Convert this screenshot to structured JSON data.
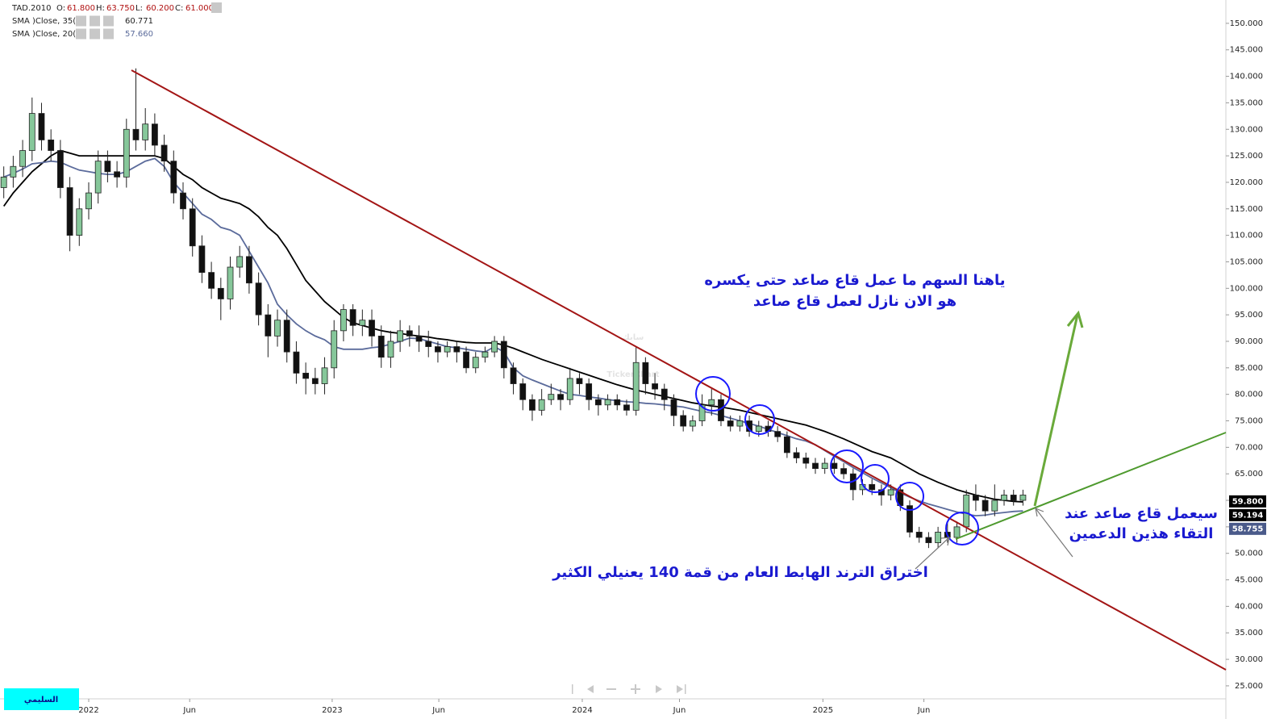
{
  "chart_data": {
    "type": "candlestick",
    "ohlc": [
      {
        "key": "O:",
        "value": "61.800"
      },
      {
        "key": "H:",
        "value": "63.750"
      },
      {
        "key": "L:",
        "value": "60.200"
      },
      {
        "key": "C:",
        "value": "61.000"
      }
    ],
    "xlim": [
      -0.4,
      129.5
    ],
    "xticks": [
      {
        "value": 9,
        "label": "2022"
      },
      {
        "value": 19.7,
        "label": "Jun"
      },
      {
        "value": 34.8,
        "label": "2023"
      },
      {
        "value": 46.1,
        "label": "Jun"
      },
      {
        "value": 61.3,
        "label": "2024"
      },
      {
        "value": 71.6,
        "label": "Jun"
      },
      {
        "value": 86.8,
        "label": "2025"
      },
      {
        "value": 97.5,
        "label": "Jun"
      }
    ],
    "ylim": [
      22.55,
      154.4
    ],
    "yticks": [
      {
        "value": 150,
        "label": "150.000"
      },
      {
        "value": 145,
        "label": "145.000"
      },
      {
        "value": 140,
        "label": "140.000"
      },
      {
        "value": 135,
        "label": "135.000"
      },
      {
        "value": 130,
        "label": "130.000"
      },
      {
        "value": 125,
        "label": "125.000"
      },
      {
        "value": 120,
        "label": "120.000"
      },
      {
        "value": 115,
        "label": "115.000"
      },
      {
        "value": 110,
        "label": "110.000"
      },
      {
        "value": 105,
        "label": "105.000"
      },
      {
        "value": 100,
        "label": "100.000"
      },
      {
        "value": 95,
        "label": "95.000"
      },
      {
        "value": 90,
        "label": "90.000"
      },
      {
        "value": 85,
        "label": "85.000"
      },
      {
        "value": 80,
        "label": "80.000"
      },
      {
        "value": 75,
        "label": "75.000"
      },
      {
        "value": 70,
        "label": "70.000"
      },
      {
        "value": 65,
        "label": "65.000"
      },
      {
        "value": 60,
        "label": "60.000"
      },
      {
        "value": 55,
        "label": "55.000"
      },
      {
        "value": 50,
        "label": "50.000"
      },
      {
        "value": 45,
        "label": "45.000"
      },
      {
        "value": 40,
        "label": "40.000"
      },
      {
        "value": 35,
        "label": "35.000"
      },
      {
        "value": 30,
        "label": "30.000"
      },
      {
        "value": 25,
        "label": "25.000"
      }
    ],
    "series": [
      {
        "name": "TAD.2010",
        "up_color": "#86c79a",
        "down_color": "#111111",
        "open": [
          119,
          121,
          123,
          126,
          133,
          128,
          126,
          119,
          110,
          115,
          118,
          124,
          122,
          121,
          130,
          128,
          131,
          127,
          124,
          118,
          115,
          108,
          103,
          100,
          98,
          104,
          106,
          101,
          95,
          91,
          94,
          88,
          84,
          83,
          82,
          85,
          92,
          96,
          93,
          94,
          91,
          87,
          90,
          92,
          91,
          90,
          89,
          88,
          89,
          88,
          85,
          87,
          88,
          90,
          85,
          82,
          79,
          77,
          79,
          80,
          79,
          83,
          82,
          79,
          78,
          79,
          78,
          77,
          86,
          82,
          81,
          79,
          76,
          74,
          75,
          78,
          79,
          75,
          74,
          75,
          73,
          74,
          73,
          72,
          69,
          68,
          67,
          66,
          67,
          66,
          65,
          62,
          63,
          62,
          61,
          62,
          59,
          54,
          53,
          52,
          54,
          53,
          55,
          61,
          60,
          58,
          60,
          61,
          60
        ],
        "high": [
          123,
          125,
          128,
          136,
          135,
          130,
          128,
          121,
          117,
          120,
          126,
          126,
          124,
          132,
          141.5,
          134,
          133,
          129,
          126,
          120,
          117,
          110,
          105,
          102,
          106,
          108,
          108,
          103,
          97,
          96,
          96,
          90,
          86,
          85,
          87,
          94,
          97,
          97,
          96,
          96,
          93,
          92,
          94,
          93,
          93,
          92,
          90,
          90,
          90,
          89,
          88,
          89,
          91,
          91,
          86,
          83,
          80,
          81,
          82,
          81,
          85,
          84,
          83,
          80,
          80,
          80,
          79,
          89,
          87,
          84,
          82,
          80,
          77,
          76,
          80,
          81,
          80,
          76,
          76,
          76,
          75,
          75,
          74,
          73,
          70,
          69,
          68,
          68,
          68,
          67,
          66,
          64,
          64,
          63,
          63,
          63,
          60,
          55,
          54,
          55,
          56,
          56,
          62,
          63,
          61,
          63,
          62,
          62,
          62
        ],
        "low": [
          117,
          119,
          121,
          124,
          126,
          124,
          117,
          107,
          108,
          113,
          116,
          120,
          119,
          119,
          126,
          126,
          125,
          122,
          116,
          113,
          106,
          101,
          98,
          94,
          96,
          102,
          99,
          93,
          87,
          89,
          86,
          82,
          80,
          80,
          80,
          83,
          90,
          91,
          91,
          89,
          85,
          85,
          88,
          89,
          88,
          87,
          86,
          87,
          86,
          84,
          84,
          86,
          87,
          83,
          80,
          77,
          75,
          76,
          78,
          77,
          78,
          80,
          77,
          76,
          77,
          77,
          76,
          76,
          80,
          79,
          77,
          74,
          73,
          73,
          74,
          76,
          74,
          73,
          73,
          72,
          72,
          72,
          71,
          68,
          67,
          66,
          65,
          65,
          65,
          64,
          60,
          61,
          61,
          59,
          60,
          58,
          53,
          52,
          51,
          51,
          52,
          52,
          54,
          58,
          57,
          57,
          59,
          59,
          59
        ],
        "close": [
          121,
          123,
          126,
          133,
          128,
          126,
          119,
          110,
          115,
          118,
          124,
          122,
          121,
          130,
          128,
          131,
          127,
          124,
          118,
          115,
          108,
          103,
          100,
          98,
          104,
          106,
          101,
          95,
          91,
          94,
          88,
          84,
          83,
          82,
          85,
          92,
          96,
          93,
          94,
          91,
          87,
          90,
          92,
          91,
          90,
          89,
          88,
          89,
          88,
          85,
          87,
          88,
          90,
          85,
          82,
          79,
          77,
          79,
          80,
          79,
          83,
          82,
          79,
          78,
          79,
          78,
          77,
          86,
          82,
          81,
          79,
          76,
          74,
          75,
          78,
          79,
          75,
          74,
          75,
          73,
          74,
          73,
          72,
          69,
          68,
          67,
          66,
          67,
          66,
          65,
          62,
          63,
          62,
          61,
          62,
          59,
          54,
          53,
          52,
          54,
          53,
          55,
          61,
          60,
          58,
          60,
          61,
          60,
          61
        ]
      }
    ],
    "lines": [
      {
        "name": "SMA )Close, 35(",
        "legend_value": "60.771",
        "color": "#000000",
        "values": [
          115.5,
          118,
          120,
          122,
          123.5,
          125,
          126,
          125.5,
          125,
          125,
          125,
          125,
          125,
          125,
          125,
          125,
          125,
          124.5,
          123,
          121.5,
          120.5,
          119,
          118,
          117,
          116.5,
          116,
          115,
          113.5,
          111.5,
          110,
          107.5,
          104.5,
          101.5,
          99.5,
          97.5,
          96,
          94.5,
          93.5,
          93,
          92.5,
          92,
          91.7,
          91.5,
          91.2,
          91,
          90.8,
          90.5,
          90.3,
          90,
          89.8,
          89.7,
          89.7,
          89.7,
          89.3,
          88.7,
          88,
          87.3,
          86.6,
          86,
          85.4,
          84.8,
          84.2,
          83.6,
          83,
          82.4,
          81.8,
          81.3,
          80.8,
          80.4,
          80,
          79.6,
          79.2,
          78.8,
          78.4,
          78.1,
          77.8,
          77.6,
          77.3,
          77,
          76.6,
          76.2,
          75.8,
          75.4,
          75,
          74.6,
          74.2,
          73.6,
          73,
          72.3,
          71.6,
          70.8,
          70,
          69.2,
          68.6,
          68,
          67,
          66,
          65,
          64.2,
          63.4,
          62.7,
          62,
          61.5,
          61,
          60.6,
          60.2,
          60,
          59.8,
          59.7
        ]
      },
      {
        "name": "SMA )Close, 20(",
        "legend_value": "57.660",
        "color": "#5b6b9b",
        "values": [
          121,
          121.7,
          122.5,
          123.5,
          123.7,
          124,
          123.8,
          123,
          122.3,
          122,
          121.7,
          121.5,
          121.5,
          122,
          123,
          124,
          124.5,
          123,
          120,
          118,
          116,
          114,
          113,
          111.5,
          111,
          110,
          107,
          104,
          101,
          97,
          95,
          93.3,
          92,
          91,
          90.3,
          89,
          88.5,
          88.5,
          88.5,
          88.8,
          89,
          89.5,
          90,
          90.6,
          90.5,
          90,
          89.5,
          89,
          88.8,
          88.5,
          88.2,
          88,
          89,
          88,
          85,
          83.5,
          82.7,
          82,
          81.3,
          80.6,
          80,
          79.8,
          79.5,
          79.3,
          79,
          78.8,
          78.6,
          78.5,
          78.3,
          78.2,
          78,
          77.8,
          77.6,
          77.2,
          76.8,
          76.5,
          76,
          75.5,
          75,
          74.5,
          74,
          73.4,
          72.8,
          72.2,
          71.6,
          71.2,
          70.5,
          69.4,
          68.3,
          67.3,
          66.2,
          65.2,
          64.2,
          63.3,
          62.4,
          61.4,
          60.6,
          59.9,
          59.3,
          58.8,
          58.3,
          57.8,
          57.4,
          57.1,
          57.2,
          57.5,
          57.7,
          57.9,
          58
        ]
      }
    ],
    "price_labels": [
      {
        "value": 59.8,
        "label": "59.800",
        "color": "#000000"
      },
      {
        "value": 59.194,
        "label": "59.194",
        "color": "#000000"
      },
      {
        "value": 58.755,
        "label": "58.755",
        "color": "#4a5a8a"
      }
    ]
  },
  "annotations": {
    "top_note": [
      "ياهنا السهم ما عمل قاع صاعد حتى يكسره",
      "هو الان نازل لعمل قاع صاعد"
    ],
    "breakout_note": "اختراق الترند الهابط العام من قمة 140 يعنيلي الكثير",
    "support_note": [
      "سيعمل قاع صاعد عند",
      "التقاء هذين الدعمين"
    ],
    "author": "السليمي",
    "watermark": [
      "سابك",
      "TickerChart"
    ]
  }
}
